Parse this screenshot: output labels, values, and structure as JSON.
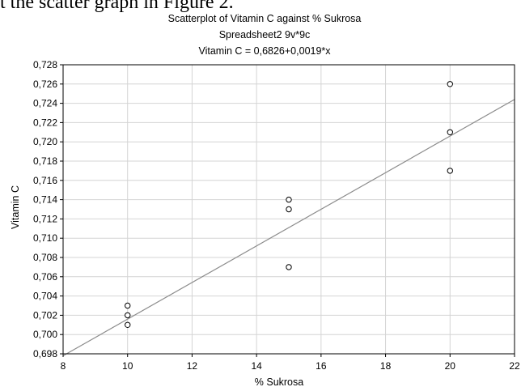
{
  "document": {
    "lead_text": "t the scatter graph in Figure 2."
  },
  "chart_data": {
    "type": "scatter",
    "title": "Scatterplot of Vitamin C against % Sukrosa",
    "subtitle": "Spreadsheet2 9v*9c",
    "equation": "Vitamin C = 0,6826+0,0019*x",
    "xlabel": "% Sukrosa",
    "ylabel": "Vitamin C",
    "xlim": [
      8,
      22
    ],
    "ylim": [
      0.698,
      0.728
    ],
    "x_ticks": [
      "8",
      "10",
      "12",
      "14",
      "16",
      "18",
      "20",
      "22"
    ],
    "y_ticks": [
      "0,698",
      "0,700",
      "0,702",
      "0,704",
      "0,706",
      "0,708",
      "0,710",
      "0,712",
      "0,714",
      "0,716",
      "0,718",
      "0,720",
      "0,722",
      "0,724",
      "0,726",
      "0,728"
    ],
    "grid": true,
    "series": [
      {
        "points": [
          [
            10,
            0.703
          ],
          [
            10,
            0.702
          ],
          [
            10,
            0.701
          ],
          [
            15,
            0.714
          ],
          [
            15,
            0.713
          ],
          [
            15,
            0.707
          ],
          [
            20,
            0.726
          ],
          [
            20,
            0.721
          ],
          [
            20,
            0.717
          ]
        ]
      }
    ],
    "regression": {
      "intercept": 0.6826,
      "slope": 0.0019
    },
    "colors": {
      "grid": "#d4d4d4",
      "frame": "#000000",
      "fit_line": "#8c8c8c",
      "marker": "#000000"
    }
  }
}
